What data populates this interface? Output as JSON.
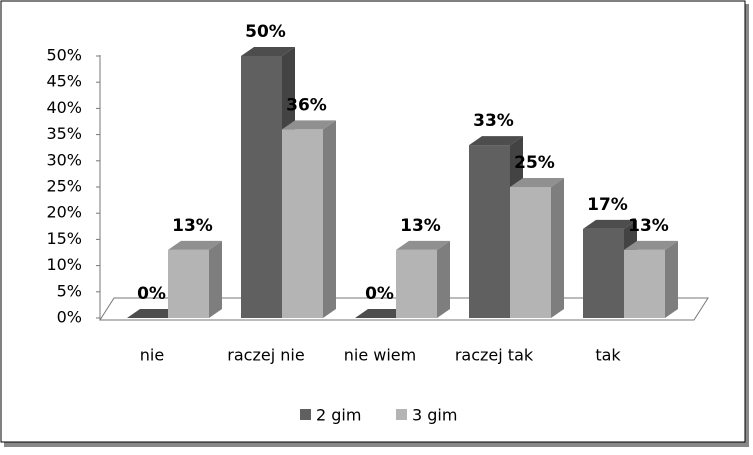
{
  "chart_data": {
    "type": "bar3d",
    "categories": [
      "nie",
      "raczej nie",
      "nie wiem",
      "raczej tak",
      "tak"
    ],
    "series": [
      {
        "name": "2 gim",
        "color": "#606060",
        "values": [
          0,
          50,
          0,
          33,
          17
        ],
        "value_labels": [
          "0%",
          "50%",
          "0%",
          "33%",
          "17%"
        ]
      },
      {
        "name": "3 gim",
        "color": "#b4b4b4",
        "values": [
          13,
          36,
          13,
          25,
          13
        ],
        "value_labels": [
          "13%",
          "36%",
          "13%",
          "25%",
          "13%"
        ]
      }
    ],
    "ylim": [
      0,
      50
    ],
    "yticks": [
      {
        "value": 0,
        "label": "0%"
      },
      {
        "value": 5,
        "label": "5%"
      },
      {
        "value": 10,
        "label": "10%"
      },
      {
        "value": 15,
        "label": "15%"
      },
      {
        "value": 20,
        "label": "20%"
      },
      {
        "value": 25,
        "label": "25%"
      },
      {
        "value": 30,
        "label": "30%"
      },
      {
        "value": 35,
        "label": "35%"
      },
      {
        "value": 40,
        "label": "40%"
      },
      {
        "value": 45,
        "label": "45%"
      },
      {
        "value": 50,
        "label": "50%"
      }
    ],
    "legend": "bottom"
  }
}
